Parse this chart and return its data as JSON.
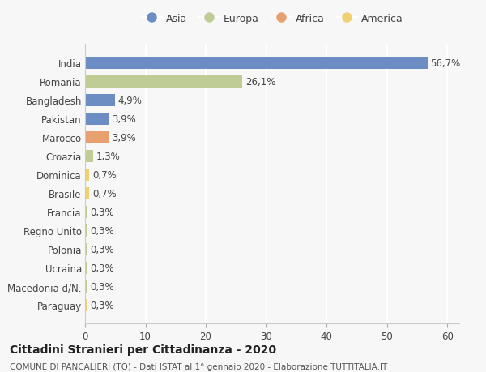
{
  "countries": [
    "India",
    "Romania",
    "Bangladesh",
    "Pakistan",
    "Marocco",
    "Croazia",
    "Dominica",
    "Brasile",
    "Francia",
    "Regno Unito",
    "Polonia",
    "Ucraina",
    "Macedonia d/N.",
    "Paraguay"
  ],
  "values": [
    56.7,
    26.1,
    4.9,
    3.9,
    3.9,
    1.3,
    0.7,
    0.7,
    0.3,
    0.3,
    0.3,
    0.3,
    0.3,
    0.3
  ],
  "labels": [
    "56,7%",
    "26,1%",
    "4,9%",
    "3,9%",
    "3,9%",
    "1,3%",
    "0,7%",
    "0,7%",
    "0,3%",
    "0,3%",
    "0,3%",
    "0,3%",
    "0,3%",
    "0,3%"
  ],
  "colors": [
    "#6b8dc4",
    "#bfcc96",
    "#6b8dc4",
    "#6b8dc4",
    "#e8a070",
    "#bfcc96",
    "#f0d070",
    "#f0d070",
    "#bfcc96",
    "#bfcc96",
    "#bfcc96",
    "#bfcc96",
    "#bfcc96",
    "#f0d070"
  ],
  "legend_items": [
    {
      "label": "Asia",
      "color": "#6b8dc4"
    },
    {
      "label": "Europa",
      "color": "#bfcc96"
    },
    {
      "label": "Africa",
      "color": "#e8a070"
    },
    {
      "label": "America",
      "color": "#f0d070"
    }
  ],
  "xlim": [
    0,
    62
  ],
  "xticks": [
    0,
    10,
    20,
    30,
    40,
    50,
    60
  ],
  "title": "Cittadini Stranieri per Cittadinanza - 2020",
  "subtitle": "COMUNE DI PANCALIERI (TO) - Dati ISTAT al 1° gennaio 2020 - Elaborazione TUTTITALIA.IT",
  "background_color": "#f7f7f7",
  "bar_height": 0.65,
  "grid_color": "#ffffff",
  "label_fontsize": 8.5,
  "tick_fontsize": 8.5,
  "title_fontsize": 10,
  "subtitle_fontsize": 7.5
}
